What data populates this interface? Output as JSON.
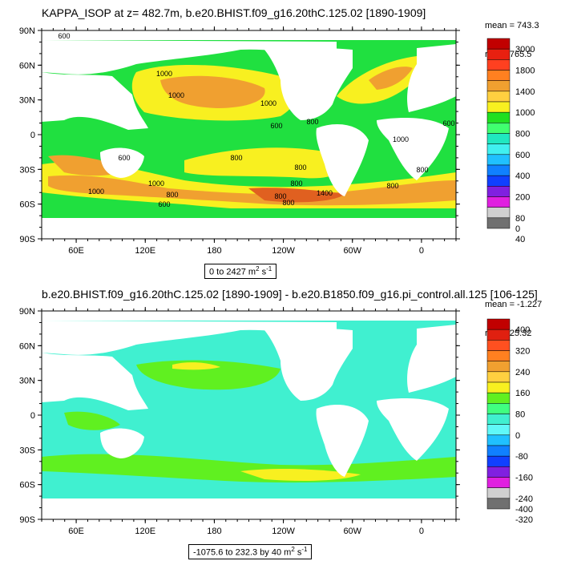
{
  "panel1": {
    "title": "KAPPA_ISOP at z= 482.7m, b.e20.BHIST.f09_g16.20thC.125.02 [1890-1909]",
    "stats_mean": "mean = 743.3",
    "stats_rms": "rms = 765.5",
    "range_text": "0 to 2427 m",
    "range_sup": "2",
    "range_unit_tail": " s",
    "range_sup2": "-1",
    "colorbar_labels": [
      "3000",
      "1800",
      "1400",
      "1000",
      "800",
      "600",
      "400",
      "200",
      "80",
      "40",
      "0"
    ],
    "colorbar_colors": [
      "#c10000",
      "#e82010",
      "#ff4020",
      "#ff8020",
      "#f0a030",
      "#ffd040",
      "#f8f020",
      "#20e020",
      "#40ff70",
      "#20e8c0",
      "#40f0f0",
      "#20c0ff",
      "#1080ff",
      "#1040ff",
      "#8020e0",
      "#e020e0",
      "#d0d0d0",
      "#707070"
    ],
    "contour_labels": [
      "600",
      "1000",
      "600",
      "800",
      "800",
      "1000",
      "800",
      "600",
      "1000",
      "1000",
      "800",
      "800",
      "1400",
      "1000",
      "800",
      "1000",
      "600",
      "800",
      "800",
      "600",
      "800"
    ]
  },
  "panel2": {
    "title": "b.e20.BHIST.f09_g16.20thC.125.02 [1890-1909] - b.e20.B1850.f09_g16.pi_control.all.125 [106-125]",
    "stats_mean": "mean = -1.227",
    "stats_rms": "rms = 25.32",
    "range_text": "-1075.6 to 232.3 by 40 m",
    "range_sup": "2",
    "range_unit_tail": " s",
    "range_sup2": "-1",
    "colorbar_labels": [
      "400",
      "320",
      "240",
      "160",
      "80",
      "0",
      "-80",
      "-160",
      "-240",
      "-320",
      "-400"
    ],
    "colorbar_colors": [
      "#c10000",
      "#e02010",
      "#ff5020",
      "#ff8020",
      "#f0a030",
      "#ffd040",
      "#f8f020",
      "#60f020",
      "#40ff80",
      "#40f0d0",
      "#60f8f8",
      "#20c0ff",
      "#1080ff",
      "#1040ff",
      "#8020e0",
      "#e020e0",
      "#d0d0d0",
      "#707070"
    ]
  },
  "axes": {
    "lat_labels": [
      "90N",
      "60N",
      "30N",
      "0",
      "30S",
      "60S",
      "90S"
    ],
    "lon_labels": [
      "60E",
      "120E",
      "180",
      "120W",
      "60W",
      "0"
    ]
  }
}
